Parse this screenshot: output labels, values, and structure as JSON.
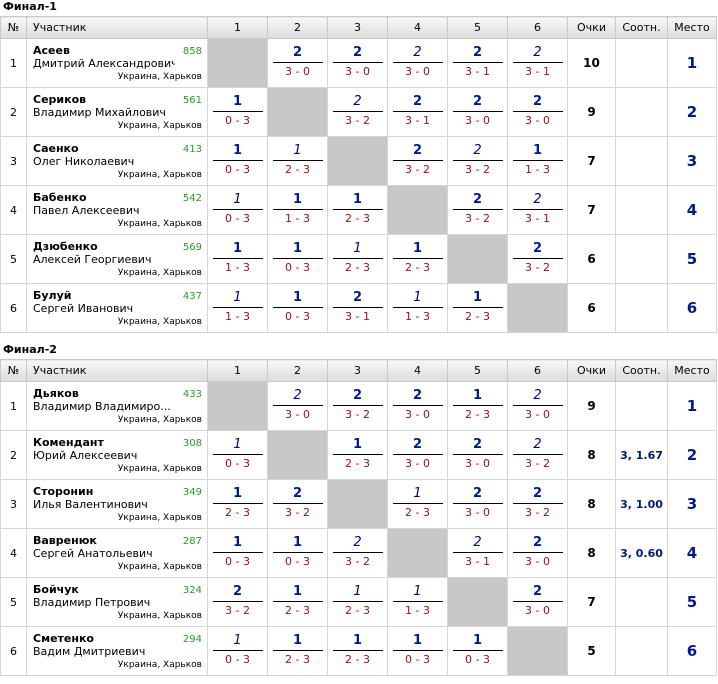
{
  "headers": [
    "№",
    "Участник",
    "1",
    "2",
    "3",
    "4",
    "5",
    "6",
    "Очки",
    "Соотн.",
    "Место"
  ],
  "groups": [
    {
      "title": "Финал-1",
      "rows": [
        {
          "num": "1",
          "last": "Асеев",
          "first": "Дмитрий Александрович",
          "rating": "858",
          "loc": "Украина, Харьков",
          "cells": [
            null,
            {
              "p": "2",
              "s": "3 - 0",
              "w": true
            },
            {
              "p": "2",
              "s": "3 - 0",
              "w": true
            },
            {
              "p": "2",
              "s": "3 - 0",
              "w": false
            },
            {
              "p": "2",
              "s": "3 - 1",
              "w": true
            },
            {
              "p": "2",
              "s": "3 - 1",
              "w": false
            }
          ],
          "points": "10",
          "soot": "",
          "place": "1"
        },
        {
          "num": "2",
          "last": "Сериков",
          "first": "Владимир Михайлович",
          "rating": "561",
          "loc": "Украина, Харьков",
          "cells": [
            {
              "p": "1",
              "s": "0 - 3",
              "w": true
            },
            null,
            {
              "p": "2",
              "s": "3 - 2",
              "w": false
            },
            {
              "p": "2",
              "s": "3 - 1",
              "w": true
            },
            {
              "p": "2",
              "s": "3 - 0",
              "w": true
            },
            {
              "p": "2",
              "s": "3 - 0",
              "w": true
            }
          ],
          "points": "9",
          "soot": "",
          "place": "2"
        },
        {
          "num": "3",
          "last": "Саенко",
          "first": "Олег Николаевич",
          "rating": "413",
          "loc": "Украина, Харьков",
          "cells": [
            {
              "p": "1",
              "s": "0 - 3",
              "w": true
            },
            {
              "p": "1",
              "s": "2 - 3",
              "w": false
            },
            null,
            {
              "p": "2",
              "s": "3 - 2",
              "w": true
            },
            {
              "p": "2",
              "s": "3 - 2",
              "w": false
            },
            {
              "p": "1",
              "s": "1 - 3",
              "w": true
            }
          ],
          "points": "7",
          "soot": "",
          "place": "3"
        },
        {
          "num": "4",
          "last": "Бабенко",
          "first": "Павел Алексеевич",
          "rating": "542",
          "loc": "Украина, Харьков",
          "cells": [
            {
              "p": "1",
              "s": "0 - 3",
              "w": false
            },
            {
              "p": "1",
              "s": "1 - 3",
              "w": true
            },
            {
              "p": "1",
              "s": "2 - 3",
              "w": true
            },
            null,
            {
              "p": "2",
              "s": "3 - 2",
              "w": true
            },
            {
              "p": "2",
              "s": "3 - 1",
              "w": false
            }
          ],
          "points": "7",
          "soot": "",
          "place": "4"
        },
        {
          "num": "5",
          "last": "Дзюбенко",
          "first": "Алексей Георгиевич",
          "rating": "569",
          "loc": "Украина, Харьков",
          "cells": [
            {
              "p": "1",
              "s": "1 - 3",
              "w": true
            },
            {
              "p": "1",
              "s": "0 - 3",
              "w": true
            },
            {
              "p": "1",
              "s": "2 - 3",
              "w": false
            },
            {
              "p": "1",
              "s": "2 - 3",
              "w": true
            },
            null,
            {
              "p": "2",
              "s": "3 - 2",
              "w": true
            }
          ],
          "points": "6",
          "soot": "",
          "place": "5"
        },
        {
          "num": "6",
          "last": "Булуй",
          "first": "Сергей Иванович",
          "rating": "437",
          "loc": "Украина, Харьков",
          "cells": [
            {
              "p": "1",
              "s": "1 - 3",
              "w": false
            },
            {
              "p": "1",
              "s": "0 - 3",
              "w": true
            },
            {
              "p": "2",
              "s": "3 - 1",
              "w": true
            },
            {
              "p": "1",
              "s": "1 - 3",
              "w": false
            },
            {
              "p": "1",
              "s": "2 - 3",
              "w": true
            },
            null
          ],
          "points": "6",
          "soot": "",
          "place": "6"
        }
      ]
    },
    {
      "title": "Финал-2",
      "rows": [
        {
          "num": "1",
          "last": "Дьяков",
          "first": "Владимир Владимиро...",
          "rating": "433",
          "loc": "Украина, Харьков",
          "cells": [
            null,
            {
              "p": "2",
              "s": "3 - 0",
              "w": false
            },
            {
              "p": "2",
              "s": "3 - 2",
              "w": true
            },
            {
              "p": "2",
              "s": "3 - 0",
              "w": true
            },
            {
              "p": "1",
              "s": "2 - 3",
              "w": true
            },
            {
              "p": "2",
              "s": "3 - 0",
              "w": false
            }
          ],
          "points": "9",
          "soot": "",
          "place": "1"
        },
        {
          "num": "2",
          "last": "Комендант",
          "first": "Юрий Алексеевич",
          "rating": "308",
          "loc": "Украина, Харьков",
          "cells": [
            {
              "p": "1",
              "s": "0 - 3",
              "w": false
            },
            null,
            {
              "p": "1",
              "s": "2 - 3",
              "w": true
            },
            {
              "p": "2",
              "s": "3 - 0",
              "w": true
            },
            {
              "p": "2",
              "s": "3 - 0",
              "w": true
            },
            {
              "p": "2",
              "s": "3 - 2",
              "w": false
            }
          ],
          "points": "8",
          "soot": "3, 1.67",
          "place": "2"
        },
        {
          "num": "3",
          "last": "Сторонин",
          "first": "Илья Валентинович",
          "rating": "349",
          "loc": "Украина, Харьков",
          "cells": [
            {
              "p": "1",
              "s": "2 - 3",
              "w": true
            },
            {
              "p": "2",
              "s": "3 - 2",
              "w": true
            },
            null,
            {
              "p": "1",
              "s": "2 - 3",
              "w": false
            },
            {
              "p": "2",
              "s": "3 - 0",
              "w": true
            },
            {
              "p": "2",
              "s": "3 - 2",
              "w": true
            }
          ],
          "points": "8",
          "soot": "3, 1.00",
          "place": "3"
        },
        {
          "num": "4",
          "last": "Вавренюк",
          "first": "Сергей Анатольевич",
          "rating": "287",
          "loc": "Украина, Харьков",
          "cells": [
            {
              "p": "1",
              "s": "0 - 3",
              "w": true
            },
            {
              "p": "1",
              "s": "0 - 3",
              "w": true
            },
            {
              "p": "2",
              "s": "3 - 2",
              "w": false
            },
            null,
            {
              "p": "2",
              "s": "3 - 1",
              "w": false
            },
            {
              "p": "2",
              "s": "3 - 0",
              "w": true
            }
          ],
          "points": "8",
          "soot": "3, 0.60",
          "place": "4"
        },
        {
          "num": "5",
          "last": "Бойчук",
          "first": "Владимир Петрович",
          "rating": "324",
          "loc": "Украина, Харьков",
          "cells": [
            {
              "p": "2",
              "s": "3 - 2",
              "w": true
            },
            {
              "p": "1",
              "s": "2 - 3",
              "w": true
            },
            {
              "p": "1",
              "s": "2 - 3",
              "w": false
            },
            {
              "p": "1",
              "s": "1 - 3",
              "w": false
            },
            null,
            {
              "p": "2",
              "s": "3 - 0",
              "w": true
            }
          ],
          "points": "7",
          "soot": "",
          "place": "5"
        },
        {
          "num": "6",
          "last": "Сметенко",
          "first": "Вадим Дмитриевич",
          "rating": "294",
          "loc": "Украина, Харьков",
          "cells": [
            {
              "p": "1",
              "s": "0 - 3",
              "w": false
            },
            {
              "p": "1",
              "s": "2 - 3",
              "w": true
            },
            {
              "p": "1",
              "s": "2 - 3",
              "w": true
            },
            {
              "p": "1",
              "s": "0 - 3",
              "w": true
            },
            {
              "p": "1",
              "s": "0 - 3",
              "w": true
            },
            null
          ],
          "points": "5",
          "soot": "",
          "place": "6"
        }
      ]
    }
  ]
}
